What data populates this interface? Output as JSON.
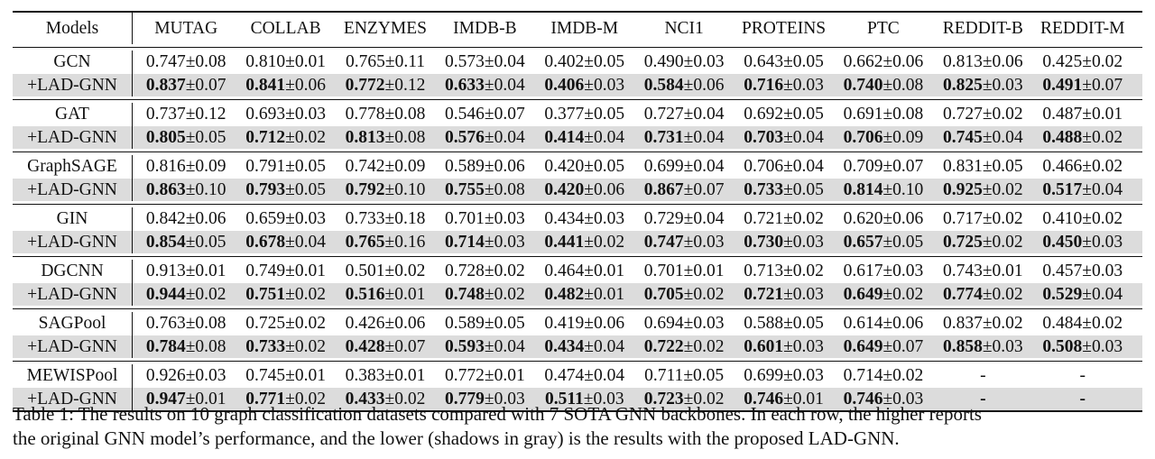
{
  "table": {
    "corner": "Models",
    "columns": [
      "MUTAG",
      "COLLAB",
      "ENZYMES",
      "IMDB-B",
      "IMDB-M",
      "NCI1",
      "PROTEINS",
      "PTC",
      "REDDIT-B",
      "REDDIT-M"
    ],
    "pm": "±",
    "groups": [
      {
        "name": "GCN",
        "lad": "+LAD-GNN",
        "base": [
          [
            "0.747",
            "0.08"
          ],
          [
            "0.810",
            "0.01"
          ],
          [
            "0.765",
            "0.11"
          ],
          [
            "0.573",
            "0.04"
          ],
          [
            "0.402",
            "0.05"
          ],
          [
            "0.490",
            "0.03"
          ],
          [
            "0.643",
            "0.05"
          ],
          [
            "0.662",
            "0.06"
          ],
          [
            "0.813",
            "0.06"
          ],
          [
            "0.425",
            "0.02"
          ]
        ],
        "ours": [
          [
            "0.837",
            "0.07"
          ],
          [
            "0.841",
            "0.06"
          ],
          [
            "0.772",
            "0.12"
          ],
          [
            "0.633",
            "0.04"
          ],
          [
            "0.406",
            "0.03"
          ],
          [
            "0.584",
            "0.06"
          ],
          [
            "0.716",
            "0.03"
          ],
          [
            "0.740",
            "0.08"
          ],
          [
            "0.825",
            "0.03"
          ],
          [
            "0.491",
            "0.07"
          ]
        ]
      },
      {
        "name": "GAT",
        "lad": "+LAD-GNN",
        "base": [
          [
            "0.737",
            "0.12"
          ],
          [
            "0.693",
            "0.03"
          ],
          [
            "0.778",
            "0.08"
          ],
          [
            "0.546",
            "0.07"
          ],
          [
            "0.377",
            "0.05"
          ],
          [
            "0.727",
            "0.04"
          ],
          [
            "0.692",
            "0.05"
          ],
          [
            "0.691",
            "0.08"
          ],
          [
            "0.727",
            "0.02"
          ],
          [
            "0.487",
            "0.01"
          ]
        ],
        "ours": [
          [
            "0.805",
            "0.05"
          ],
          [
            "0.712",
            "0.02"
          ],
          [
            "0.813",
            "0.08"
          ],
          [
            "0.576",
            "0.04"
          ],
          [
            "0.414",
            "0.04"
          ],
          [
            "0.731",
            "0.04"
          ],
          [
            "0.703",
            "0.04"
          ],
          [
            "0.706",
            "0.09"
          ],
          [
            "0.745",
            "0.04"
          ],
          [
            "0.488",
            "0.02"
          ]
        ]
      },
      {
        "name": "GraphSAGE",
        "lad": "+LAD-GNN",
        "base": [
          [
            "0.816",
            "0.09"
          ],
          [
            "0.791",
            "0.05"
          ],
          [
            "0.742",
            "0.09"
          ],
          [
            "0.589",
            "0.06"
          ],
          [
            "0.420",
            "0.05"
          ],
          [
            "0.699",
            "0.04"
          ],
          [
            "0.706",
            "0.04"
          ],
          [
            "0.709",
            "0.07"
          ],
          [
            "0.831",
            "0.05"
          ],
          [
            "0.466",
            "0.02"
          ]
        ],
        "ours": [
          [
            "0.863",
            "0.10"
          ],
          [
            "0.793",
            "0.05"
          ],
          [
            "0.792",
            "0.10"
          ],
          [
            "0.755",
            "0.08"
          ],
          [
            "0.420",
            "0.06"
          ],
          [
            "0.867",
            "0.07"
          ],
          [
            "0.733",
            "0.05"
          ],
          [
            "0.814",
            "0.10"
          ],
          [
            "0.925",
            "0.02"
          ],
          [
            "0.517",
            "0.04"
          ]
        ]
      },
      {
        "name": "GIN",
        "lad": "+LAD-GNN",
        "base": [
          [
            "0.842",
            "0.06"
          ],
          [
            "0.659",
            "0.03"
          ],
          [
            "0.733",
            "0.18"
          ],
          [
            "0.701",
            "0.03"
          ],
          [
            "0.434",
            "0.03"
          ],
          [
            "0.729",
            "0.04"
          ],
          [
            "0.721",
            "0.02"
          ],
          [
            "0.620",
            "0.06"
          ],
          [
            "0.717",
            "0.02"
          ],
          [
            "0.410",
            "0.02"
          ]
        ],
        "ours": [
          [
            "0.854",
            "0.05"
          ],
          [
            "0.678",
            "0.04"
          ],
          [
            "0.765",
            "0.16"
          ],
          [
            "0.714",
            "0.03"
          ],
          [
            "0.441",
            "0.02"
          ],
          [
            "0.747",
            "0.03"
          ],
          [
            "0.730",
            "0.03"
          ],
          [
            "0.657",
            "0.05"
          ],
          [
            "0.725",
            "0.02"
          ],
          [
            "0.450",
            "0.03"
          ]
        ]
      },
      {
        "name": "DGCNN",
        "lad": "+LAD-GNN",
        "base": [
          [
            "0.913",
            "0.01"
          ],
          [
            "0.749",
            "0.01"
          ],
          [
            "0.501",
            "0.02"
          ],
          [
            "0.728",
            "0.02"
          ],
          [
            "0.464",
            "0.01"
          ],
          [
            "0.701",
            "0.01"
          ],
          [
            "0.713",
            "0.02"
          ],
          [
            "0.617",
            "0.03"
          ],
          [
            "0.743",
            "0.01"
          ],
          [
            "0.457",
            "0.03"
          ]
        ],
        "ours": [
          [
            "0.944",
            "0.02"
          ],
          [
            "0.751",
            "0.02"
          ],
          [
            "0.516",
            "0.01"
          ],
          [
            "0.748",
            "0.02"
          ],
          [
            "0.482",
            "0.01"
          ],
          [
            "0.705",
            "0.02"
          ],
          [
            "0.721",
            "0.03"
          ],
          [
            "0.649",
            "0.02"
          ],
          [
            "0.774",
            "0.02"
          ],
          [
            "0.529",
            "0.04"
          ]
        ]
      },
      {
        "name": "SAGPool",
        "lad": "+LAD-GNN",
        "base": [
          [
            "0.763",
            "0.08"
          ],
          [
            "0.725",
            "0.02"
          ],
          [
            "0.426",
            "0.06"
          ],
          [
            "0.589",
            "0.05"
          ],
          [
            "0.419",
            "0.06"
          ],
          [
            "0.694",
            "0.03"
          ],
          [
            "0.588",
            "0.05"
          ],
          [
            "0.614",
            "0.06"
          ],
          [
            "0.837",
            "0.02"
          ],
          [
            "0.484",
            "0.02"
          ]
        ],
        "ours": [
          [
            "0.784",
            "0.08"
          ],
          [
            "0.733",
            "0.02"
          ],
          [
            "0.428",
            "0.07"
          ],
          [
            "0.593",
            "0.04"
          ],
          [
            "0.434",
            "0.04"
          ],
          [
            "0.722",
            "0.02"
          ],
          [
            "0.601",
            "0.03"
          ],
          [
            "0.649",
            "0.07"
          ],
          [
            "0.858",
            "0.03"
          ],
          [
            "0.508",
            "0.03"
          ]
        ]
      },
      {
        "name": "MEWISPool",
        "lad": "+LAD-GNN",
        "base": [
          [
            "0.926",
            "0.03"
          ],
          [
            "0.745",
            "0.01"
          ],
          [
            "0.383",
            "0.01"
          ],
          [
            "0.772",
            "0.01"
          ],
          [
            "0.474",
            "0.04"
          ],
          [
            "0.711",
            "0.05"
          ],
          [
            "0.699",
            "0.03"
          ],
          [
            "0.714",
            "0.02"
          ],
          [
            "-",
            ""
          ],
          [
            "-",
            ""
          ]
        ],
        "ours": [
          [
            "0.947",
            "0.01"
          ],
          [
            "0.771",
            "0.02"
          ],
          [
            "0.433",
            "0.02"
          ],
          [
            "0.779",
            "0.03"
          ],
          [
            "0.511",
            "0.03"
          ],
          [
            "0.723",
            "0.02"
          ],
          [
            "0.746",
            "0.01"
          ],
          [
            "0.746",
            "0.03"
          ],
          [
            "-",
            ""
          ],
          [
            "-",
            ""
          ]
        ]
      }
    ]
  },
  "caption": {
    "line1": "Table 1: The results on 10 graph classification datasets compared with 7 SOTA GNN backbones. In each row, the higher reports",
    "line2": "the original GNN model’s performance, and the lower (shadows in gray) is the results with the proposed LAD-GNN."
  }
}
